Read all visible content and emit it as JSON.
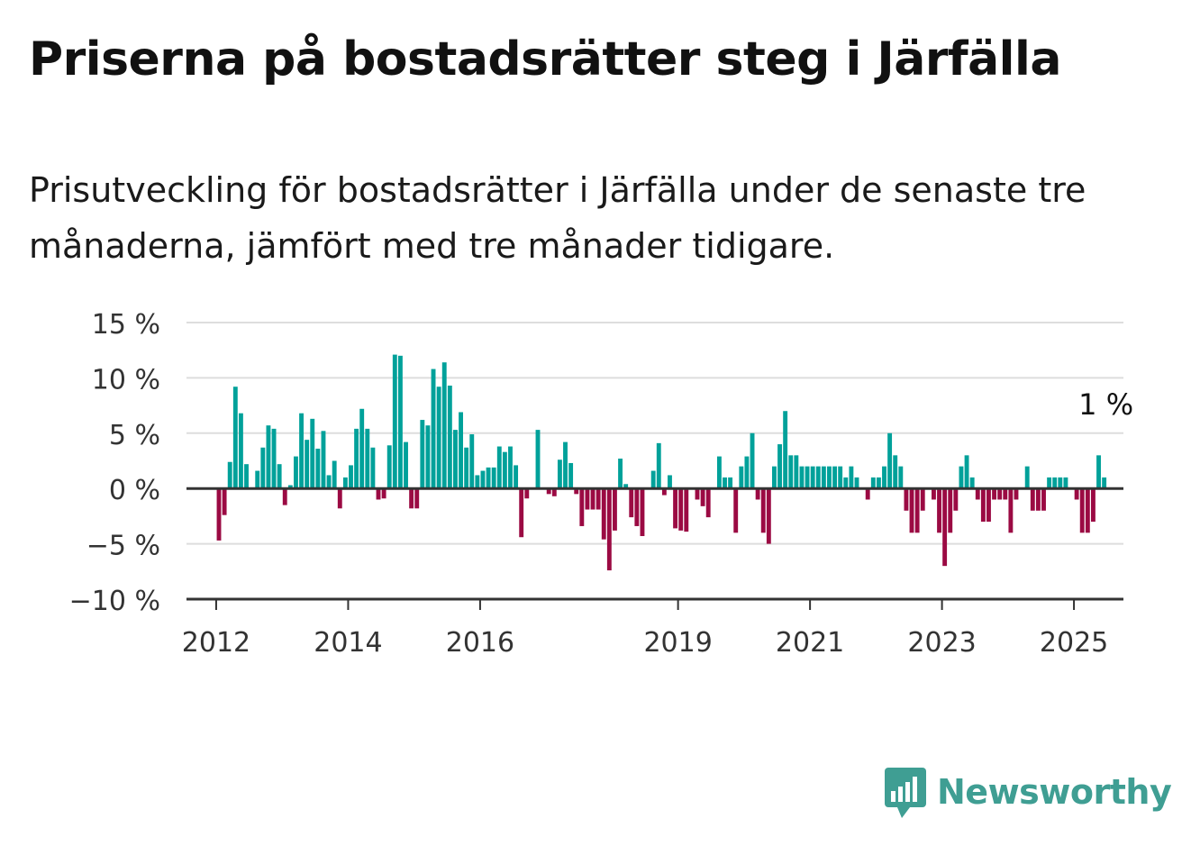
{
  "title": "Priserna på bostadsrätter steg i Järfälla",
  "subtitle": "Prisutveckling för bostadsrätter i Järfälla under de senaste tre månaderna, jämfört med tre månader tidigare.",
  "brand": {
    "name": "Newsworthy",
    "color": "#3f9e93",
    "icon": "newsworthy-logo-icon"
  },
  "colors": {
    "positive": "#00a19a",
    "negative": "#9b0a43",
    "grid": "#dddddd",
    "axis": "#333333"
  },
  "chart_data": {
    "type": "bar",
    "title": "",
    "xlabel": "",
    "ylabel": "",
    "ylim": [
      -10,
      15
    ],
    "yticks": [
      15,
      10,
      5,
      0,
      -5,
      -10
    ],
    "ytick_labels": [
      "15 %",
      "10 %",
      "5 %",
      "0 %",
      "−5 %",
      "−10 %"
    ],
    "xticks": [
      2012,
      2014,
      2016,
      2019,
      2021,
      2023,
      2025
    ],
    "xtick_labels": [
      "2012",
      "2014",
      "2016",
      "2019",
      "2021",
      "2023",
      "2025"
    ],
    "grid": true,
    "start": "2012-01",
    "frequency": "monthly",
    "annotation": {
      "text": "1 %",
      "at": "last"
    },
    "values": [
      -4.7,
      -2.4,
      2.4,
      9.2,
      6.8,
      2.2,
      0,
      1.6,
      3.7,
      5.7,
      5.4,
      2.2,
      -1.5,
      0.3,
      2.9,
      6.8,
      4.4,
      6.3,
      3.6,
      5.2,
      1.2,
      2.5,
      -1.8,
      1,
      2.1,
      5.4,
      7.2,
      5.4,
      3.7,
      -1,
      -0.9,
      3.9,
      12.1,
      12,
      4.2,
      -1.8,
      -1.8,
      6.2,
      5.7,
      10.8,
      9.2,
      11.4,
      9.3,
      5.3,
      6.9,
      3.7,
      4.9,
      1.2,
      1.6,
      1.9,
      1.9,
      3.8,
      3.3,
      3.8,
      2.1,
      -4.4,
      -0.9,
      0,
      5.3,
      0,
      -0.5,
      -0.7,
      2.6,
      4.2,
      2.3,
      -0.5,
      -3.4,
      -1.9,
      -1.9,
      -1.9,
      -4.6,
      -7.4,
      -3.8,
      2.7,
      0.4,
      -2.6,
      -3.4,
      -4.3,
      0,
      1.6,
      4.1,
      -0.6,
      1.2,
      -3.6,
      -3.8,
      -3.9,
      0,
      -1,
      -1.6,
      -2.6,
      0,
      2.9,
      1,
      1,
      -4,
      2,
      2.9,
      5,
      -1,
      -4,
      -5,
      2,
      4,
      7,
      3,
      3,
      2,
      2,
      2,
      2,
      2,
      2,
      2,
      2,
      1,
      2,
      1,
      0,
      -1,
      1,
      1,
      2,
      5,
      3,
      2,
      -2,
      -4,
      -4,
      -2,
      0,
      -1,
      -4,
      -7,
      -4,
      -2,
      2,
      3,
      1,
      -1,
      -3,
      -3,
      -1,
      -1,
      -1,
      -4,
      -1,
      0,
      2,
      -2,
      -2,
      -2,
      1,
      1,
      1,
      1,
      0,
      -1,
      -4,
      -4,
      -3,
      3,
      1
    ]
  }
}
